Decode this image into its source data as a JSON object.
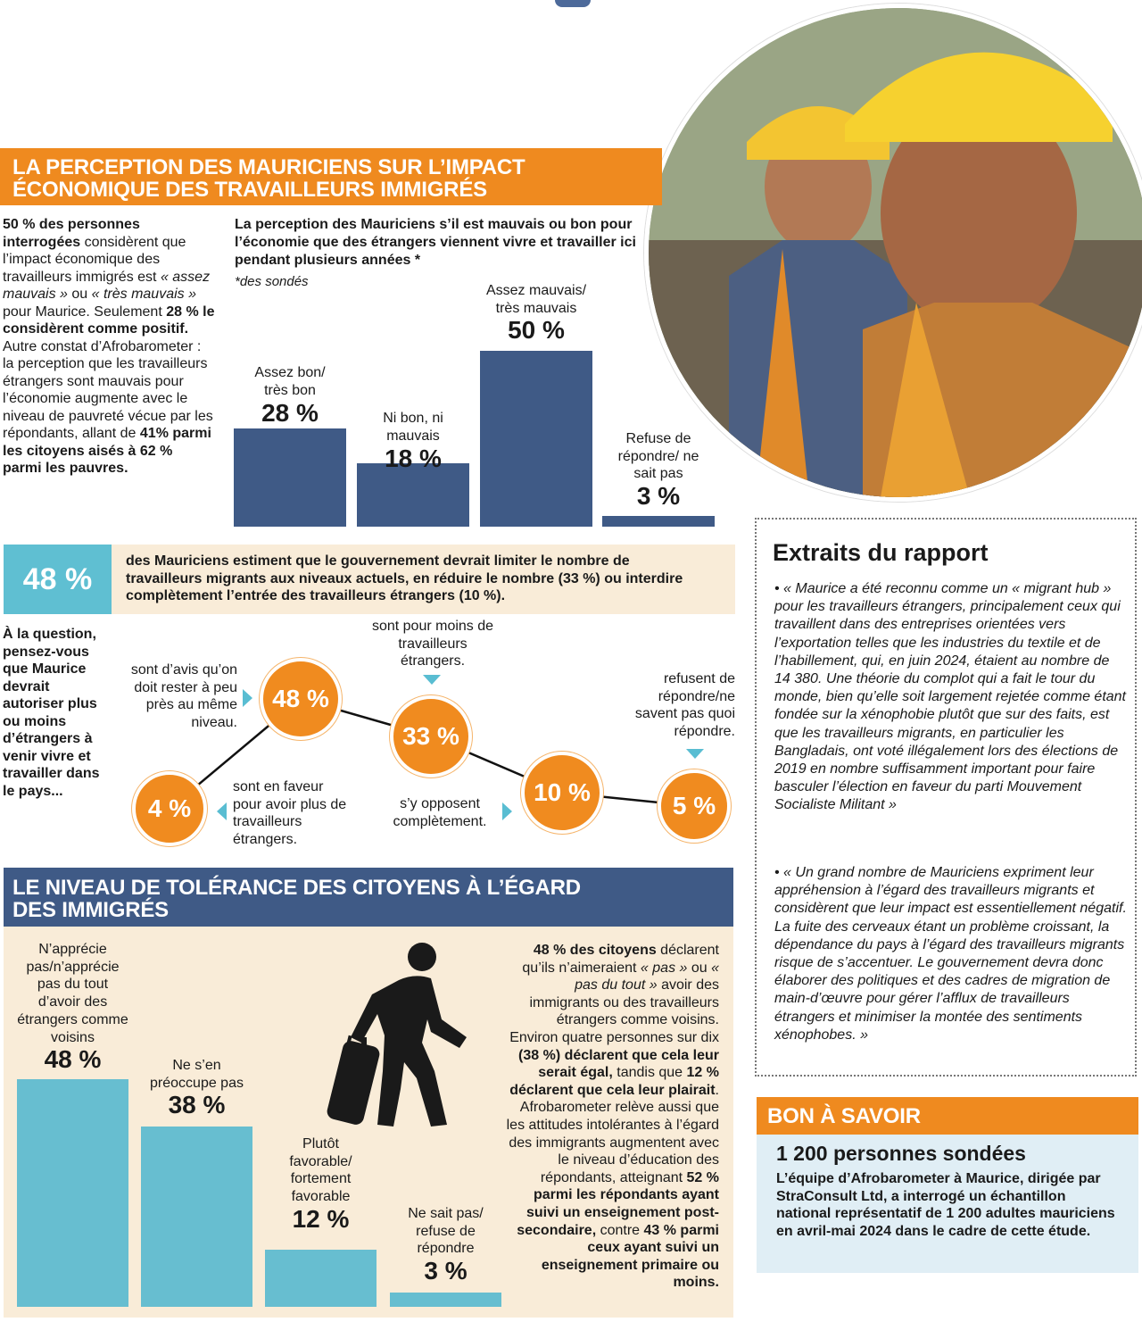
{
  "section1": {
    "title_line1": "LA PERCEPTION DES MAURICIENS SUR L’IMPACT",
    "title_line2": "ÉCONOMIQUE DES TRAVAILLEURS IMMIGRÉS",
    "intro": {
      "p1_bold": "50 % des personnes interrogées",
      "p1_text": " considèrent que l’impact économique des travailleurs immigrés est ",
      "p1_it1": "« assez mauvais »",
      "p1_text2": " ou ",
      "p1_it2": "« très mauvais »",
      "p1_text3": " pour Maurice. Seulement ",
      "p1_bold2": "28 % le considèrent comme positif.",
      "p1_text4": " Autre constat d’Afrobarometer : la perception que les travailleurs étrangers sont mauvais pour l’économie augmente avec le niveau de pauvreté vécue par les répondants, allant de ",
      "p1_bold3": "41% parmi les citoyens aisés à 62 % parmi les pauvres."
    },
    "chart_title": "La perception des Mauriciens s’il est mauvais ou bon pour l’économie que des étrangers viennent vivre et travailler ici pendant plusieurs années *",
    "chart_note": "*des sondés"
  },
  "banner48": {
    "pct": "48 %",
    "text": "des Mauriciens estiment que le gouvernement devrait limiter le nombre de travailleurs migrants aux niveaux actuels, en réduire le nombre (33 %) ou interdire complètement l’entrée des travailleurs étrangers (10 %)."
  },
  "question": {
    "text": "À la question, pensez-vous que Maurice devrait autoriser plus ou moins d’étrangers à venir vivre et travailler dans le pays...",
    "nodes": [
      {
        "value": "48 %",
        "label": "sont d’avis qu’on doit rester à peu près au même niveau."
      },
      {
        "value": "33 %",
        "label": "sont pour moins de travailleurs étrangers."
      },
      {
        "value": "10 %",
        "label": "s’y opposent complètement."
      },
      {
        "value": "5 %",
        "label": "refusent de répondre/ne savent pas quoi répondre."
      },
      {
        "value": "4 %",
        "label": "sont en faveur pour avoir plus de travailleurs étrangers."
      }
    ]
  },
  "section2": {
    "title_line1": "LE NIVEAU DE TOLÉRANCE DES CITOYENS À L’ÉGARD",
    "title_line2": "DES IMMIGRÉS",
    "text": {
      "b1": "48 % des citoyens",
      "t1": " déclarent qu’ils n’aimeraient ",
      "i1": "« pas »",
      "t2": " ou ",
      "i2": "« pas du tout »",
      "t3": " avoir des immigrants ou des travailleurs étrangers comme voisins. Environ quatre personnes sur dix ",
      "b2": "(38 %) déclarent que cela leur serait égal,",
      "t4": " tandis que ",
      "b3": "12 % déclarent que cela leur plairait",
      "t5": ". Afrobarometer relève aussi que les attitudes intolérantes à l’égard des immigrants augmentent avec le niveau d’éducation des répondants, atteignant ",
      "b4": "52 % parmi les répondants ayant suivi un enseignement post-secondaire,",
      "t6": " contre ",
      "b5": "43 % parmi ceux ayant suivi un enseignement primaire ou moins."
    }
  },
  "extraits": {
    "title": "Extraits du rapport",
    "quote1": "• « Maurice a été reconnu comme un « migrant hub » pour les travailleurs étrangers, principalement ceux qui travaillent dans des entreprises orientées vers l’exportation telles que les industries du textile et de l’habillement, qui, en juin 2024, étaient au nombre de 14 380. Une théorie du complot qui a fait le tour du monde, bien qu’elle soit largement rejetée comme étant fondée sur la xénophobie plutôt que sur des faits, est que les travailleurs migrants, en particulier les Bangladais, ont voté illégalement lors des élections de 2019 en nombre suffisamment important pour faire basculer l’élection en faveur du parti Mouvement Socialiste Militant »",
    "quote2": "• « Un grand nombre de Mauriciens expriment leur appréhension à l’égard des travailleurs migrants et considèrent que leur impact est essentiellement négatif. La fuite des cerveaux étant un problème croissant, la dépendance du pays à l’égard des travailleurs migrants risque de s’accentuer. Le gouvernement devra donc élaborer des politiques et des cadres de migration de main-d’œuvre pour gérer l’afflux de travailleurs étrangers et minimiser la montée des sentiments xénophobes. »"
  },
  "bon": {
    "title": "BON À SAVOIR",
    "headline": "1 200 personnes sondées",
    "text": "L’équipe d’Afrobarometer à Maurice, dirigée par StraConsult Ltd, a interrogé un échantillon national représentatif de 1 200 adultes mauriciens en avril-mai 2024 dans le cadre de cette étude."
  },
  "colors": {
    "orange": "#ef8a1f",
    "navy": "#3f5a86",
    "teal": "#67bed0",
    "cream": "#f9ecd8",
    "lightblue": "#e0eef5"
  },
  "chart_data": [
    {
      "type": "bar",
      "title": "La perception des Mauriciens s’il est mauvais ou bon pour l’économie que des étrangers viennent vivre et travailler ici pendant plusieurs années *",
      "categories": [
        "Assez bon/ très bon",
        "Ni bon, ni mauvais",
        "Assez mauvais/ très mauvais",
        "Refuse de répondre/ ne sait pas"
      ],
      "values": [
        28,
        18,
        50,
        3
      ],
      "labels": [
        "28 %",
        "18 %",
        "50 %",
        "3 %"
      ],
      "unit": "%",
      "ylim": [
        0,
        50
      ]
    },
    {
      "type": "bar",
      "title": "Le niveau de tolérance des citoyens à l’égard des immigrés",
      "categories": [
        "N’apprécie pas/n’apprécie pas du tout d’avoir des étrangers comme voisins",
        "Ne s’en préoccupe pas",
        "Plutôt favorable/ fortement favorable",
        "Ne sait pas/ refuse de répondre"
      ],
      "values": [
        48,
        38,
        12,
        3
      ],
      "labels": [
        "48 %",
        "38 %",
        "12 %",
        "3 %"
      ],
      "unit": "%",
      "ylim": [
        0,
        48
      ]
    }
  ]
}
